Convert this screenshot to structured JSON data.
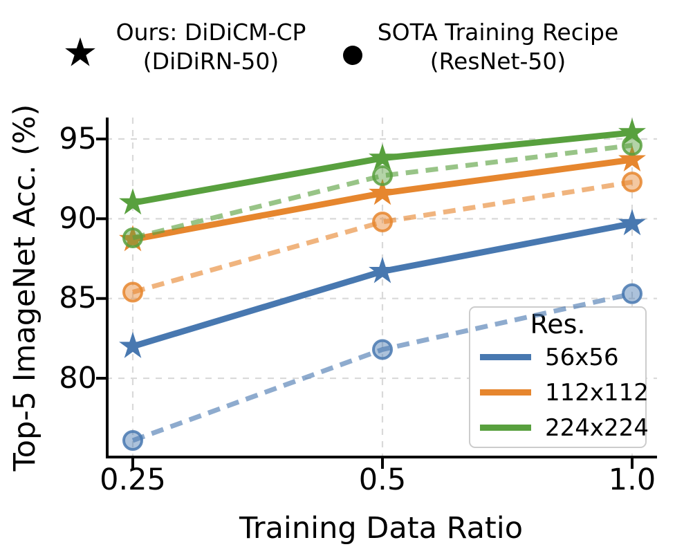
{
  "figure_legend": {
    "ours": {
      "marker": "star-icon",
      "line1": "Ours: DiDiCM-CP",
      "line2": "(DiDiRN-50)"
    },
    "sota": {
      "marker": "circle-icon",
      "line1": "SOTA Training Recipe",
      "line2": "(ResNet-50)"
    }
  },
  "chart_data": {
    "type": "line",
    "title": "",
    "xlabel": "Training Data Ratio",
    "ylabel": "Top-5 ImageNet Acc. (%)",
    "x": [
      0.25,
      0.5,
      1.0
    ],
    "x_scale": "log2",
    "xtick_labels": [
      "0.25",
      "0.5",
      "1.0"
    ],
    "yticks": [
      80,
      85,
      90,
      95
    ],
    "ylim": [
      75.0,
      96.4
    ],
    "grid": true,
    "grid_style": "dashed-light-gray",
    "legend": {
      "title": "Res.",
      "position": "lower right",
      "entries": [
        {
          "label": "56x56",
          "color": "#4878B0"
        },
        {
          "label": "112x112",
          "color": "#E6862E"
        },
        {
          "label": "224x224",
          "color": "#58A03E"
        }
      ]
    },
    "series": [
      {
        "name": "Ours: DiDiCM-CP (DiDiRN-50) - 56x56",
        "resolution": "56x56",
        "method": "ours",
        "line": "solid",
        "marker": "star",
        "color": "#4878B0",
        "values": [
          82.0,
          86.7,
          89.7
        ]
      },
      {
        "name": "SOTA Training Recipe (ResNet-50) - 56x56",
        "resolution": "56x56",
        "method": "sota",
        "line": "dashed",
        "marker": "circle",
        "color": "#4878B0",
        "values": [
          76.1,
          81.8,
          85.3
        ]
      },
      {
        "name": "Ours: DiDiCM-CP (DiDiRN-50) - 112x112",
        "resolution": "112x112",
        "method": "ours",
        "line": "solid",
        "marker": "star",
        "color": "#E6862E",
        "values": [
          88.7,
          91.6,
          93.7
        ]
      },
      {
        "name": "SOTA Training Recipe (ResNet-50) - 112x112",
        "resolution": "112x112",
        "method": "sota",
        "line": "dashed",
        "marker": "circle",
        "color": "#E6862E",
        "values": [
          85.4,
          89.8,
          92.3
        ]
      },
      {
        "name": "Ours: DiDiCM-CP (DiDiRN-50) - 224x224",
        "resolution": "224x224",
        "method": "ours",
        "line": "solid",
        "marker": "star",
        "color": "#58A03E",
        "values": [
          91.0,
          93.8,
          95.4
        ]
      },
      {
        "name": "SOTA Training Recipe (ResNet-50) - 224x224",
        "resolution": "224x224",
        "method": "sota",
        "line": "dashed",
        "marker": "circle",
        "color": "#58A03E",
        "values": [
          88.8,
          92.7,
          94.6
        ]
      }
    ]
  },
  "colors": {
    "blue": "#4878B0",
    "orange": "#E6862E",
    "green": "#58A03E",
    "grid": "#D9D9D9",
    "axis": "#000000",
    "legend_border": "#CCCCCC"
  }
}
